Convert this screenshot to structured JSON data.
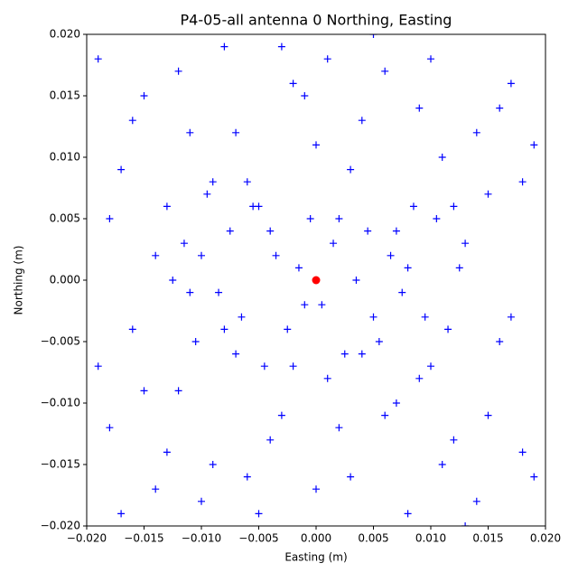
{
  "chart_data": {
    "type": "scatter",
    "title": "P4-05-all antenna 0 Northing, Easting",
    "x_label": "Easting (m)",
    "y_label": "Northing (m)",
    "xlim": [
      -0.02,
      0.02
    ],
    "ylim": [
      -0.02,
      0.02
    ],
    "xticks": [
      {
        "value": -0.02,
        "label": "−0.020"
      },
      {
        "value": -0.015,
        "label": "−0.015"
      },
      {
        "value": -0.01,
        "label": "−0.010"
      },
      {
        "value": -0.005,
        "label": "−0.005"
      },
      {
        "value": 0,
        "label": "0.000"
      },
      {
        "value": 0.005,
        "label": "0.005"
      },
      {
        "value": 0.01,
        "label": "0.010"
      },
      {
        "value": 0.015,
        "label": "0.015"
      },
      {
        "value": 0.02,
        "label": "0.020"
      }
    ],
    "yticks": [
      {
        "value": -0.02,
        "label": "−0.020"
      },
      {
        "value": -0.015,
        "label": "−0.015"
      },
      {
        "value": -0.01,
        "label": "−0.010"
      },
      {
        "value": -0.005,
        "label": "−0.005"
      },
      {
        "value": 0,
        "label": "0.000"
      },
      {
        "value": 0.005,
        "label": "0.005"
      },
      {
        "value": 0.01,
        "label": "0.010"
      },
      {
        "value": 0.015,
        "label": "0.015"
      },
      {
        "value": 0.02,
        "label": "0.020"
      }
    ],
    "series": [
      {
        "color": "#0000ff",
        "marker": "plus",
        "x": [
          -0.019,
          -0.018,
          -0.017,
          -0.016,
          -0.015,
          -0.014,
          -0.013,
          -0.012,
          -0.011,
          -0.01,
          -0.009,
          -0.008,
          -0.007,
          -0.006,
          -0.005,
          -0.004,
          -0.003,
          -0.002,
          -0.001,
          0,
          0.001,
          0.002,
          0.003,
          0.004,
          0.005,
          0.006,
          0.007,
          0.008,
          0.009,
          0.01,
          0.011,
          0.012,
          0.013,
          0.014,
          0.015,
          0.016,
          0.017,
          0.018,
          0.019,
          -0.019,
          -0.018,
          -0.017,
          -0.016,
          -0.015,
          -0.014,
          -0.013,
          -0.012,
          -0.011,
          -0.01,
          -0.009,
          -0.008,
          -0.007,
          -0.006,
          -0.005,
          -0.004,
          -0.003,
          -0.002,
          -0.001,
          0,
          0.001,
          0.002,
          0.003,
          0.004,
          0.005,
          0.006,
          0.007,
          0.008,
          0.009,
          0.01,
          0.011,
          0.012,
          0.013,
          0.014,
          0.015,
          0.016,
          0.017,
          0.018,
          0.019,
          -0.0125,
          -0.0115,
          -0.0105,
          -0.0095,
          -0.0085,
          -0.0075,
          -0.0065,
          -0.0055,
          -0.0045,
          -0.0035,
          -0.0025,
          -0.0015,
          -0.0005,
          0.0005,
          0.0015,
          0.0025,
          0.0035,
          0.0045,
          0.0055,
          0.0065,
          0.0075,
          0.0085,
          0.0095,
          0.0105,
          0.0115,
          0.0125
        ],
        "y": [
          0.018,
          -0.012,
          0.009,
          -0.004,
          0.015,
          -0.017,
          0.006,
          -0.009,
          0.012,
          0.002,
          -0.015,
          0.019,
          -0.006,
          0.008,
          -0.019,
          0.004,
          -0.011,
          0.016,
          -0.002,
          0.011,
          -0.008,
          0.005,
          -0.016,
          0.013,
          -0.003,
          0.017,
          -0.01,
          0.001,
          0.014,
          -0.007,
          0.01,
          -0.013,
          0.003,
          -0.018,
          0.007,
          -0.005,
          0.016,
          -0.014,
          0.011,
          -0.007,
          0.005,
          -0.019,
          0.013,
          -0.009,
          0.002,
          -0.014,
          0.017,
          -0.001,
          -0.018,
          0.008,
          -0.004,
          0.012,
          -0.016,
          0.006,
          -0.013,
          0.019,
          -0.007,
          0.015,
          -0.017,
          0.018,
          -0.012,
          0.009,
          -0.006,
          0.02,
          -0.011,
          0.004,
          -0.019,
          -0.008,
          0.018,
          -0.015,
          0.006,
          -0.02,
          0.012,
          -0.011,
          0.014,
          -0.003,
          0.008,
          -0.016,
          0,
          0.003,
          -0.005,
          0.007,
          -0.001,
          0.004,
          -0.003,
          0.006,
          -0.007,
          0.002,
          -0.004,
          0.001,
          0.005,
          -0.002,
          0.003,
          -0.006,
          0,
          0.004,
          -0.005,
          0.002,
          -0.001,
          0.006,
          -0.003,
          0.005,
          -0.004,
          0.001
        ]
      },
      {
        "color": "#ff0000",
        "marker": "circle",
        "x": [
          0
        ],
        "y": [
          0
        ]
      }
    ]
  }
}
